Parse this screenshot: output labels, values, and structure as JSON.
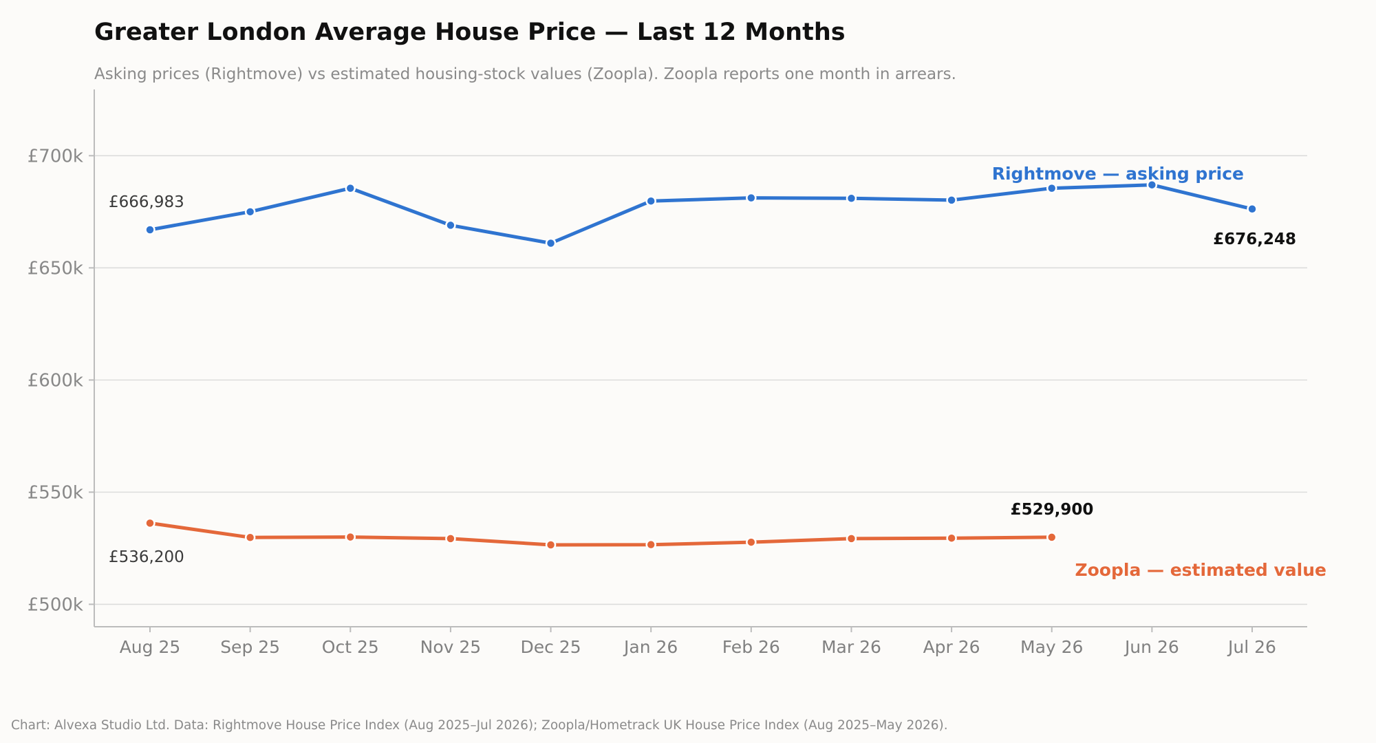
{
  "chart_data": {
    "type": "line",
    "title": "Greater London Average House Price — Last 12 Months",
    "subtitle": "Asking prices (Rightmove) vs estimated housing-stock values (Zoopla). Zoopla reports one month in arrears.",
    "source": "Chart: Alvexa Studio Ltd. Data: Rightmove House Price Index (Aug 2025–Jul 2026); Zoopla/Hometrack UK House Price Index (Aug 2025–May 2026).",
    "xlabel": "",
    "ylabel": "",
    "categories": [
      "Aug 25",
      "Sep 25",
      "Oct 25",
      "Nov 25",
      "Dec 25",
      "Jan 26",
      "Feb 26",
      "Mar 26",
      "Apr 26",
      "May 26",
      "Jun 26",
      "Jul 26"
    ],
    "ylim": [
      490000,
      732000
    ],
    "yticks": [
      500000,
      550000,
      600000,
      650000,
      700000
    ],
    "ytick_labels": [
      "£500k",
      "£550k",
      "£600k",
      "£650k",
      "£700k"
    ],
    "grid": "horizontal",
    "legend": "direct labels",
    "series": [
      {
        "name": "Rightmove — asking price",
        "color": "#2f74d0",
        "values": [
          666983,
          675000,
          685500,
          669000,
          661000,
          679800,
          681200,
          681000,
          680200,
          685500,
          687000,
          676248
        ],
        "start_label": "£666,983",
        "end_label": "£676,248"
      },
      {
        "name": "Zoopla — estimated value",
        "color": "#e4683a",
        "values": [
          536200,
          529800,
          530000,
          529300,
          526500,
          526600,
          527700,
          529300,
          529500,
          529900,
          null,
          null
        ],
        "start_label": "£536,200",
        "end_label": "£529,900"
      }
    ]
  }
}
